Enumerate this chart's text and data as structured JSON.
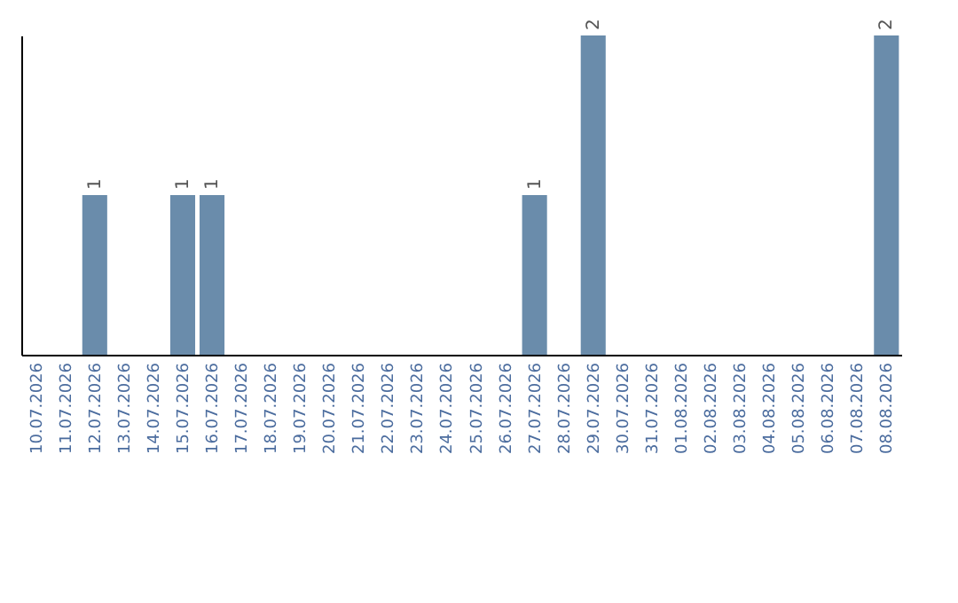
{
  "chart_data": {
    "type": "bar",
    "categories": [
      "10.07.2026",
      "11.07.2026",
      "12.07.2026",
      "13.07.2026",
      "14.07.2026",
      "15.07.2026",
      "16.07.2026",
      "17.07.2026",
      "18.07.2026",
      "19.07.2026",
      "20.07.2026",
      "21.07.2026",
      "22.07.2026",
      "23.07.2026",
      "24.07.2026",
      "25.07.2026",
      "26.07.2026",
      "27.07.2026",
      "28.07.2026",
      "29.07.2026",
      "30.07.2026",
      "31.07.2026",
      "01.08.2026",
      "02.08.2026",
      "03.08.2026",
      "04.08.2026",
      "05.08.2026",
      "06.08.2026",
      "07.08.2026",
      "08.08.2026"
    ],
    "values": [
      0,
      0,
      1,
      0,
      0,
      1,
      1,
      0,
      0,
      0,
      0,
      0,
      0,
      0,
      0,
      0,
      0,
      1,
      0,
      2,
      0,
      0,
      0,
      0,
      0,
      0,
      0,
      0,
      0,
      2
    ],
    "value_labels": [
      null,
      null,
      "1",
      null,
      null,
      "1",
      "1",
      null,
      null,
      null,
      null,
      null,
      null,
      null,
      null,
      null,
      null,
      "1",
      null,
      "2",
      null,
      null,
      null,
      null,
      null,
      null,
      null,
      null,
      null,
      "2"
    ],
    "color": "#6a8cab",
    "grid": false
  }
}
